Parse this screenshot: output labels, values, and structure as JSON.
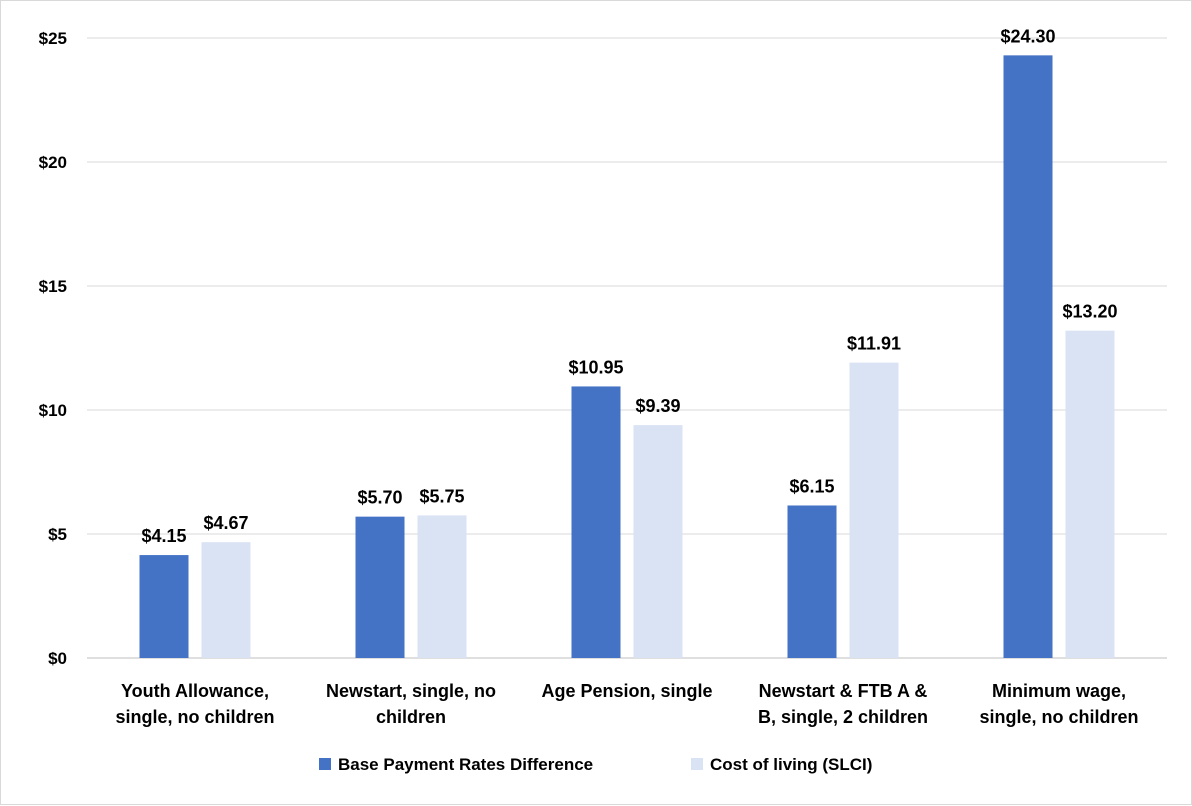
{
  "chart_data": {
    "type": "bar",
    "title": "",
    "xlabel": "",
    "ylabel": "",
    "categories": [
      [
        "Youth Allowance,",
        "single, no children"
      ],
      [
        "Newstart, single, no",
        "children"
      ],
      [
        "Age Pension, single"
      ],
      [
        "Newstart & FTB A &",
        "B, single, 2 children"
      ],
      [
        "Minimum wage,",
        "single, no children"
      ]
    ],
    "series": [
      {
        "name": "Base Payment Rates Difference",
        "color": "#4472c4",
        "values": [
          4.15,
          5.7,
          10.95,
          6.15,
          24.3
        ],
        "labels": [
          "$4.15",
          "$5.70",
          "$10.95",
          "$6.15",
          "$24.30"
        ]
      },
      {
        "name": "Cost of living (SLCI)",
        "color": "#dae3f3",
        "values": [
          4.67,
          5.75,
          9.39,
          11.91,
          13.2
        ],
        "labels": [
          "$4.67",
          "$5.75",
          "$9.39",
          "$11.91",
          "$13.20"
        ]
      }
    ],
    "ylim": [
      0,
      25
    ],
    "yticks": [
      0,
      5,
      10,
      15,
      20,
      25
    ],
    "ytick_labels": [
      "$0",
      "$5",
      "$10",
      "$15",
      "$20",
      "$25"
    ],
    "grid": true,
    "legend_position": "bottom"
  }
}
